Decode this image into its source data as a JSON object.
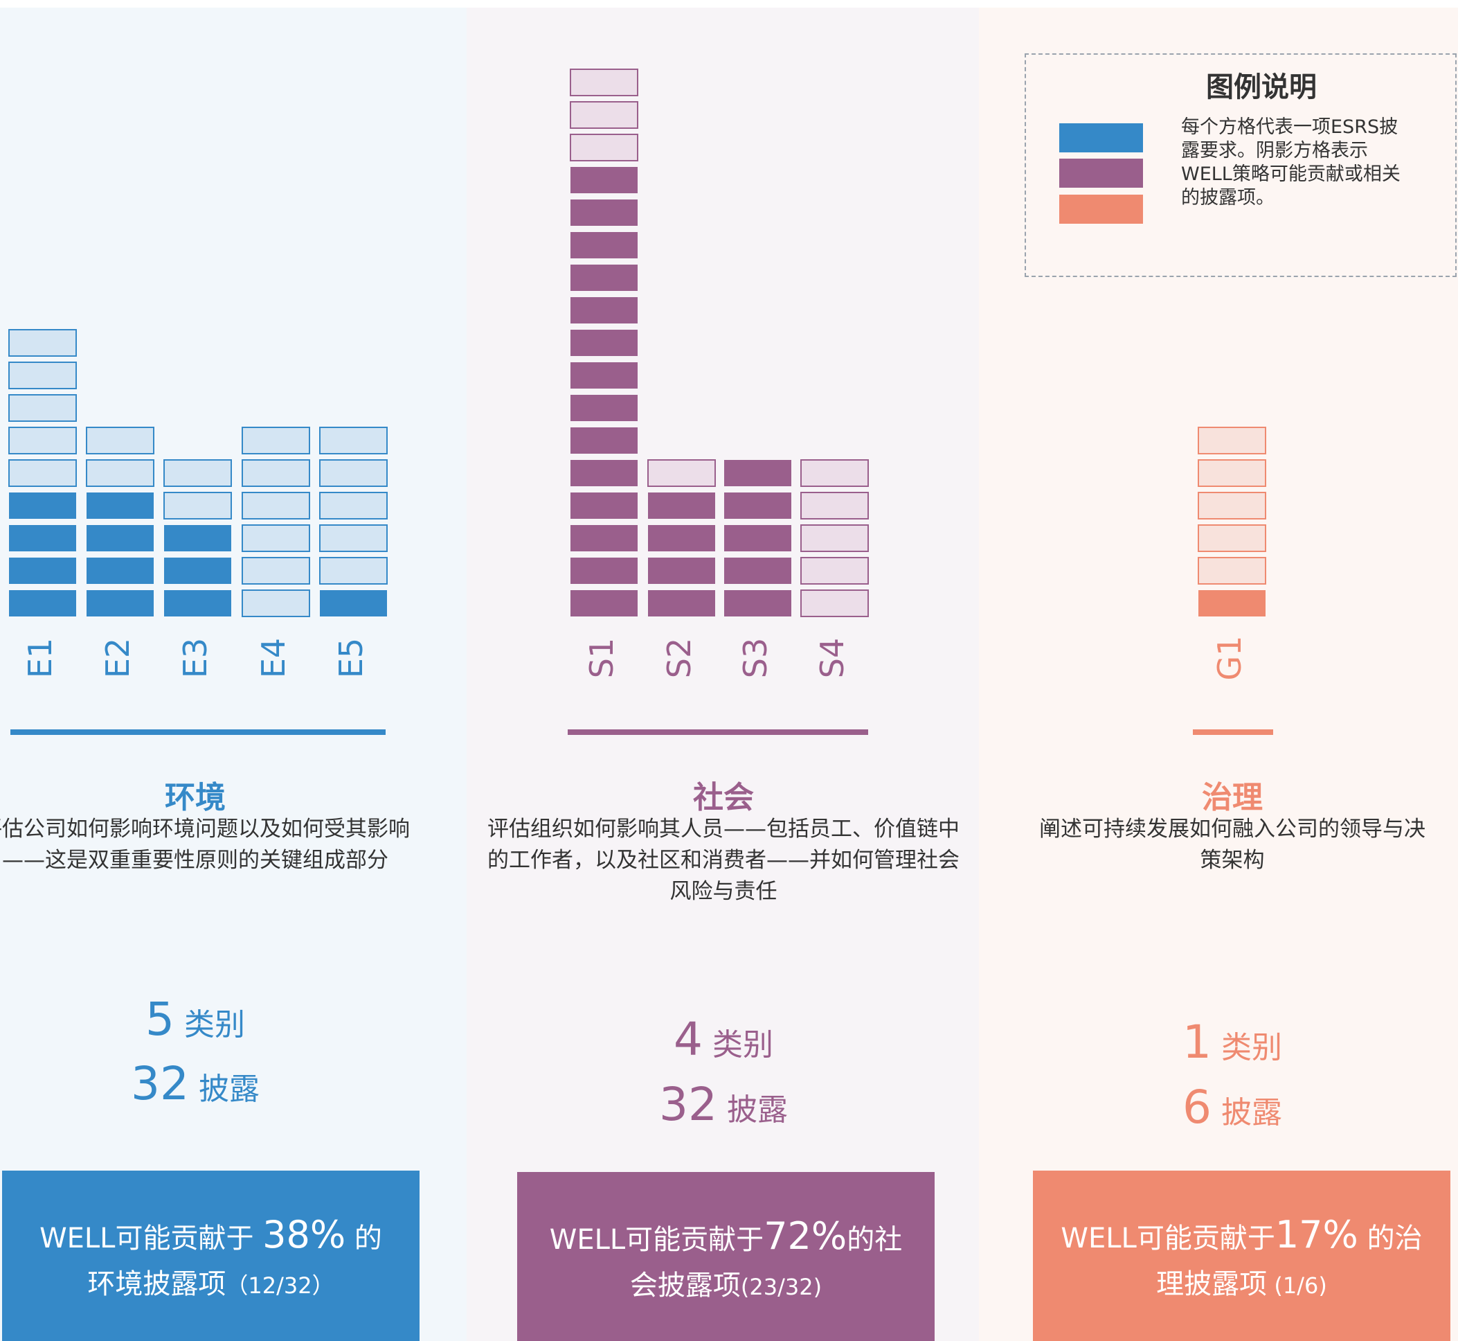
{
  "legend": {
    "title": "图例说明",
    "text": "每个方格代表一项ESRS披露要求。阴影方格表示WELL策略可能贡献或相关的披露项。"
  },
  "panels": [
    {
      "title": "环境",
      "color": "#3589c8",
      "light": "#d4e5f3",
      "background": "#f2f7fb",
      "description_lines": [
        "评估公司如何影响环境问题以及如何受其",
        "影响——这是双重重要性原则的关键组成",
        "部分"
      ],
      "categories": [
        {
          "label": "E1",
          "total": 9,
          "shaded": 4
        },
        {
          "label": "E2",
          "total": 6,
          "shaded": 4
        },
        {
          "label": "E3",
          "total": 5,
          "shaded": 3
        },
        {
          "label": "E4",
          "total": 6,
          "shaded": 0
        },
        {
          "label": "E5",
          "total": 6,
          "shaded": 1
        }
      ],
      "category_count": 5,
      "category_unit": "类别",
      "disclosure_count": 32,
      "disclosure_unit": "披露",
      "summary": {
        "lead": "WELL可能贡献于 ",
        "percent": "38%",
        "tail": " 的",
        "line2": "环境披露项",
        "note": "（12/32）"
      }
    },
    {
      "title": "社会",
      "color": "#9a5f8c",
      "light": "#ecdee9",
      "background": "#f7f4f7",
      "description_lines": [
        "评估组织如何影响其人员——包括员工、价值",
        "链中的工作者，以及社区和消费者——并如何",
        "管理社会风险与责任"
      ],
      "categories": [
        {
          "label": "S1",
          "total": 17,
          "shaded": 14
        },
        {
          "label": "S2",
          "total": 5,
          "shaded": 4
        },
        {
          "label": "S3",
          "total": 5,
          "shaded": 5
        },
        {
          "label": "S4",
          "total": 5,
          "shaded": 0
        }
      ],
      "category_count": 4,
      "category_unit": "类别",
      "disclosure_count": 32,
      "disclosure_unit": "披露",
      "summary": {
        "lead": "WELL可能贡献于",
        "percent": "72%",
        "tail": "的社",
        "line2": "会披露项",
        "note": "(23/32)"
      }
    },
    {
      "title": "治理",
      "color": "#ef8a70",
      "light": "#f8e2dc",
      "background": "#fdf6f3",
      "description_lines": [
        "阐述可持续发展如何融入公司的领",
        "导与决策架构"
      ],
      "categories": [
        {
          "label": "G1",
          "total": 6,
          "shaded": 1
        }
      ],
      "category_count": 1,
      "category_unit": "类别",
      "disclosure_count": 6,
      "disclosure_unit": "披露",
      "summary": {
        "lead": "WELL可能贡献于",
        "percent": "17%",
        "tail": " 的治",
        "line2": "理披露项",
        "note": " (1/6)"
      }
    }
  ]
}
